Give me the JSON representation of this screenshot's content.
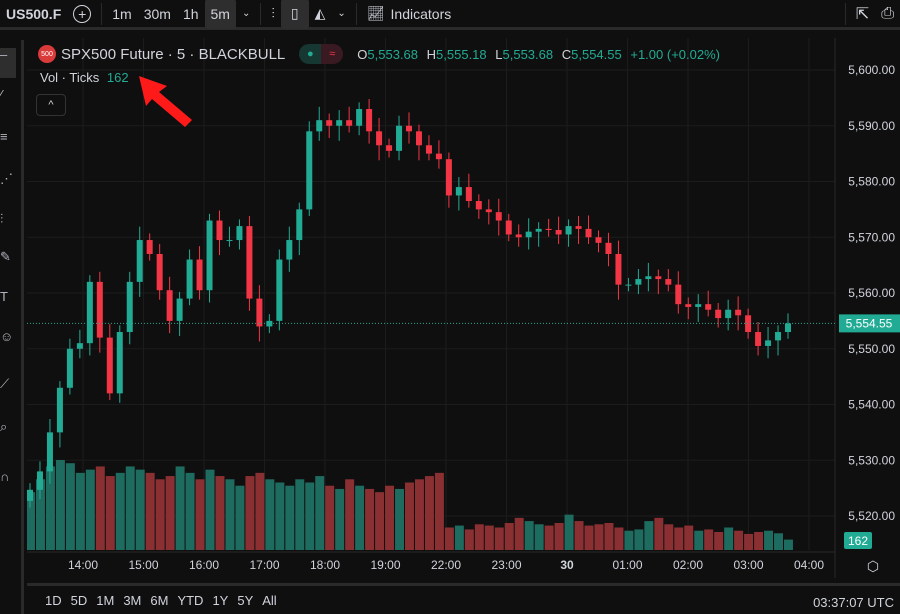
{
  "toolbar": {
    "symbol": "US500.F",
    "intervals": [
      "1m",
      "30m",
      "1h",
      "5m"
    ],
    "active_interval": "5m",
    "indicators_label": "Indicators"
  },
  "legend": {
    "title": "SPX500 Future · 5 · BLACKBULL",
    "logo_text": "500",
    "open_label": "O",
    "open": "5,553.68",
    "high_label": "H",
    "high": "5,555.18",
    "low_label": "L",
    "low": "5,553.68",
    "close_label": "C",
    "close": "5,554.55",
    "change": "+1.00 (+0.02%)"
  },
  "volume_legend": {
    "label": "Vol · Ticks",
    "value": "162"
  },
  "colors": {
    "up": "#22ab94",
    "down": "#f23645",
    "up_vol": "#1e6b60",
    "down_vol": "#8a3033",
    "background": "#0f0f0f"
  },
  "chart_data": {
    "type": "candlestick",
    "price_ticks": [
      "5,600.00",
      "5,590.00",
      "5,580.00",
      "5,570.00",
      "5,560.00",
      "5,550.00",
      "5,540.00",
      "5,530.00",
      "5,520.00"
    ],
    "ylim": [
      5520,
      5600
    ],
    "time_ticks": [
      "14:00",
      "15:00",
      "16:00",
      "17:00",
      "18:00",
      "19:00",
      "22:00",
      "23:00",
      "30",
      "01:00",
      "02:00",
      "03:00",
      "04:00"
    ],
    "current_price": "5,554.55",
    "current_volume": "162",
    "closes": [
      5524.7,
      5528,
      5535,
      5543,
      5550,
      5551,
      5562,
      5552,
      5542,
      5553,
      5562,
      5569.5,
      5567,
      5560.5,
      5555,
      5559,
      5566,
      5560.5,
      5573,
      5569.5,
      5569.5,
      5572,
      5559,
      5554,
      5555,
      5566,
      5569.5,
      5575,
      5589,
      5591,
      5590,
      5591,
      5590,
      5593,
      5589,
      5586.5,
      5585.5,
      5590,
      5589,
      5586.5,
      5585,
      5584,
      5577.5,
      5579,
      5576.5,
      5575,
      5574.5,
      5573,
      5570.5,
      5570,
      5571,
      5571.5,
      5571.3,
      5570.5,
      5572,
      5571.5,
      5570,
      5569,
      5567,
      5561.5,
      5561.5,
      5562.5,
      5563,
      5562.5,
      5561.5,
      5558,
      5557.5,
      5558,
      5557,
      5555.5,
      5557,
      5556,
      5553,
      5550.5,
      5551.5,
      5553,
      5554.55
    ],
    "volumes": [
      900,
      1100,
      1300,
      1400,
      1350,
      1200,
      1250,
      1300,
      1150,
      1200,
      1300,
      1250,
      1200,
      1100,
      1150,
      1300,
      1200,
      1100,
      1250,
      1150,
      1100,
      1000,
      1150,
      1200,
      1100,
      1050,
      1000,
      1100,
      1050,
      1150,
      1000,
      950,
      1100,
      1000,
      950,
      900,
      1000,
      950,
      1050,
      1100,
      1150,
      1200,
      350,
      380,
      320,
      400,
      380,
      350,
      420,
      500,
      450,
      400,
      380,
      420,
      550,
      450,
      380,
      400,
      420,
      350,
      300,
      320,
      450,
      500,
      400,
      350,
      380,
      300,
      320,
      280,
      350,
      300,
      250,
      280,
      300,
      260,
      162
    ]
  },
  "range_buttons": [
    "1D",
    "5D",
    "1M",
    "3M",
    "6M",
    "YTD",
    "1Y",
    "5Y",
    "All"
  ],
  "clock": "03:37:07 UTC"
}
